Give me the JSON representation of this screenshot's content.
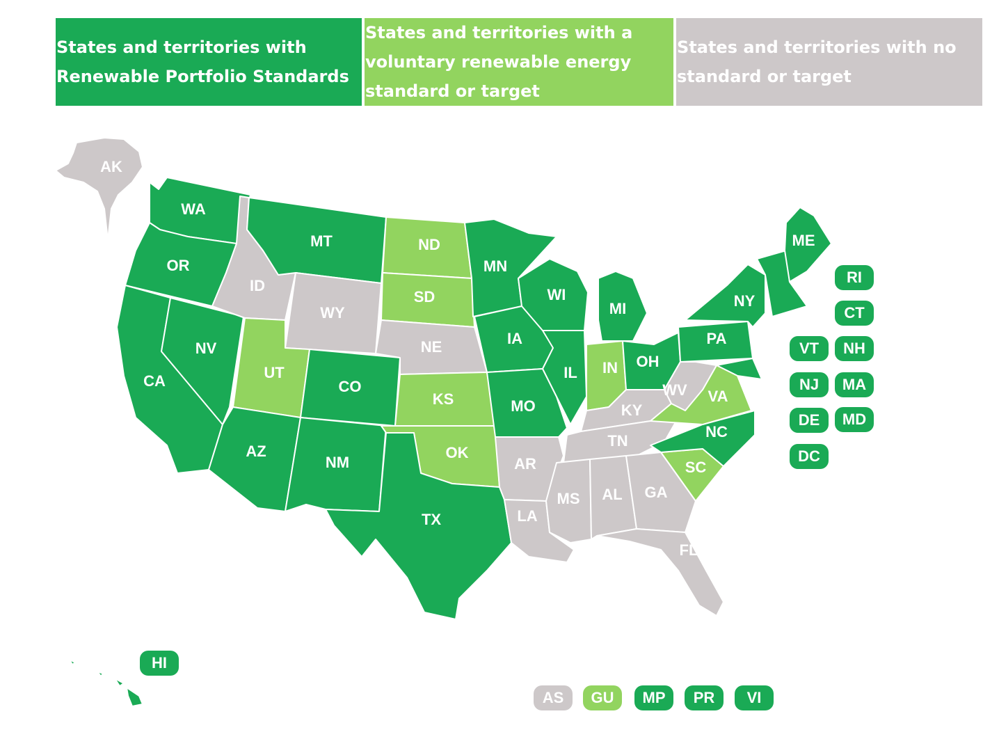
{
  "legend": {
    "rps": "States and territories with Renewable Portfolio Standards",
    "voluntary": "States and territories with a voluntary renewable energy standard or target",
    "none": "States and territories with no standard or target"
  },
  "colors": {
    "rps": "#1aaa55",
    "voluntary": "#92d45f",
    "none": "#cdc8c9"
  },
  "states": [
    {
      "code": "AK",
      "status": "none"
    },
    {
      "code": "WA",
      "status": "rps"
    },
    {
      "code": "OR",
      "status": "rps"
    },
    {
      "code": "CA",
      "status": "rps"
    },
    {
      "code": "NV",
      "status": "rps"
    },
    {
      "code": "ID",
      "status": "none"
    },
    {
      "code": "MT",
      "status": "rps"
    },
    {
      "code": "WY",
      "status": "none"
    },
    {
      "code": "UT",
      "status": "voluntary"
    },
    {
      "code": "AZ",
      "status": "rps"
    },
    {
      "code": "CO",
      "status": "rps"
    },
    {
      "code": "NM",
      "status": "rps"
    },
    {
      "code": "ND",
      "status": "voluntary"
    },
    {
      "code": "SD",
      "status": "voluntary"
    },
    {
      "code": "NE",
      "status": "none"
    },
    {
      "code": "KS",
      "status": "voluntary"
    },
    {
      "code": "OK",
      "status": "voluntary"
    },
    {
      "code": "TX",
      "status": "rps"
    },
    {
      "code": "MN",
      "status": "rps"
    },
    {
      "code": "IA",
      "status": "rps"
    },
    {
      "code": "MO",
      "status": "rps"
    },
    {
      "code": "AR",
      "status": "none"
    },
    {
      "code": "LA",
      "status": "none"
    },
    {
      "code": "WI",
      "status": "rps"
    },
    {
      "code": "IL",
      "status": "rps"
    },
    {
      "code": "MI",
      "status": "rps"
    },
    {
      "code": "IN",
      "status": "voluntary"
    },
    {
      "code": "OH",
      "status": "rps"
    },
    {
      "code": "KY",
      "status": "none"
    },
    {
      "code": "TN",
      "status": "none"
    },
    {
      "code": "MS",
      "status": "none"
    },
    {
      "code": "AL",
      "status": "none"
    },
    {
      "code": "GA",
      "status": "none"
    },
    {
      "code": "FL",
      "status": "none"
    },
    {
      "code": "SC",
      "status": "voluntary"
    },
    {
      "code": "NC",
      "status": "rps"
    },
    {
      "code": "VA",
      "status": "voluntary"
    },
    {
      "code": "WV",
      "status": "none"
    },
    {
      "code": "PA",
      "status": "rps"
    },
    {
      "code": "NY",
      "status": "rps"
    },
    {
      "code": "ME",
      "status": "rps"
    },
    {
      "code": "HI",
      "status": "rps"
    }
  ],
  "badges_northeast": [
    {
      "code": "RI",
      "status": "rps"
    },
    {
      "code": "CT",
      "status": "rps"
    },
    {
      "code": "VT",
      "status": "rps"
    },
    {
      "code": "NH",
      "status": "rps"
    },
    {
      "code": "NJ",
      "status": "rps"
    },
    {
      "code": "MA",
      "status": "rps"
    },
    {
      "code": "DE",
      "status": "rps"
    },
    {
      "code": "MD",
      "status": "rps"
    },
    {
      "code": "DC",
      "status": "rps"
    }
  ],
  "territories": [
    {
      "code": "AS",
      "status": "none"
    },
    {
      "code": "GU",
      "status": "voluntary"
    },
    {
      "code": "MP",
      "status": "rps"
    },
    {
      "code": "PR",
      "status": "rps"
    },
    {
      "code": "VI",
      "status": "rps"
    }
  ]
}
